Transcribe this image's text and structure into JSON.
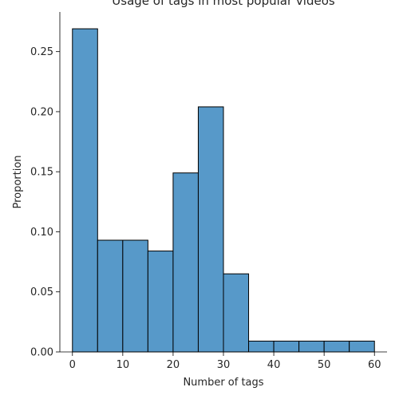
{
  "chart_data": {
    "type": "bar",
    "subtype": "histogram",
    "title": "Usage of tags in most popular videos",
    "xlabel": "Number of tags",
    "ylabel": "Proportion",
    "bin_edges": [
      0,
      5,
      10,
      15,
      20,
      25,
      30,
      35,
      40,
      45,
      50,
      55,
      60
    ],
    "values": [
      0.269,
      0.093,
      0.093,
      0.084,
      0.149,
      0.204,
      0.065,
      0.009,
      0.009,
      0.009,
      0.009,
      0.009
    ],
    "xlim": [
      -2.5,
      62.5
    ],
    "ylim": [
      0,
      0.283
    ],
    "xticks": [
      0,
      10,
      20,
      30,
      40,
      50,
      60
    ],
    "xtick_labels": [
      "0",
      "10",
      "20",
      "30",
      "40",
      "50",
      "60"
    ],
    "yticks": [
      0.0,
      0.05,
      0.1,
      0.15,
      0.2,
      0.25
    ],
    "ytick_labels": [
      "0.00",
      "0.05",
      "0.10",
      "0.15",
      "0.20",
      "0.25"
    ],
    "grid": false,
    "bar_color": "#5799c9",
    "edge_color": "#000000"
  }
}
